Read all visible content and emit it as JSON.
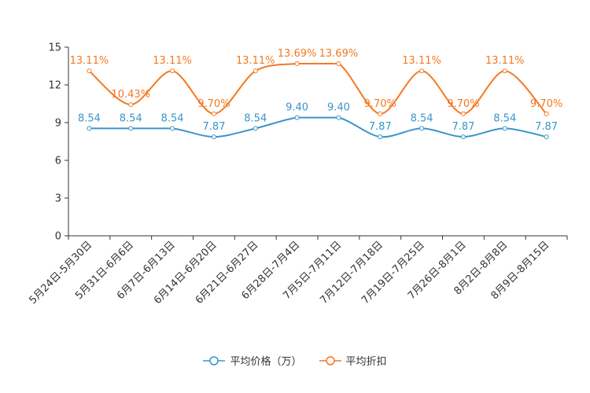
{
  "chart_data": {
    "type": "line",
    "title": "",
    "xlabel": "",
    "ylabel": "",
    "ylim": [
      0,
      15
    ],
    "yticks": [
      0,
      3,
      6,
      9,
      12,
      15
    ],
    "categories": [
      "5月24日-5月30日",
      "5月31日-6月6日",
      "6月7日-6月13日",
      "6月14日-6月20日",
      "6月21日-6月27日",
      "6月28日-7月4日",
      "7月5日-7月11日",
      "7月12日-7月18日",
      "7月19日-7月25日",
      "7月26日-8月1日",
      "8月2日-8月8日",
      "8月9日-8月15日"
    ],
    "series": [
      {
        "name": "平均价格（万）",
        "color": "#3a96c8",
        "values": [
          8.54,
          8.54,
          8.54,
          7.87,
          8.54,
          9.4,
          9.4,
          7.87,
          8.54,
          7.87,
          8.54,
          7.87
        ],
        "labels": [
          "8.54",
          "8.54",
          "8.54",
          "7.87",
          "8.54",
          "9.40",
          "9.40",
          "7.87",
          "8.54",
          "7.87",
          "8.54",
          "7.87"
        ]
      },
      {
        "name": "平均折扣",
        "color": "#f47920",
        "values": [
          13.11,
          10.43,
          13.11,
          9.7,
          13.11,
          13.69,
          13.69,
          9.7,
          13.11,
          9.7,
          13.11,
          9.7
        ],
        "labels": [
          "13.11%",
          "10.43%",
          "13.11%",
          "9.70%",
          "13.11%",
          "13.69%",
          "13.69%",
          "9.70%",
          "13.11%",
          "9.70%",
          "13.11%",
          "9.70%"
        ]
      }
    ],
    "legend_position": "bottom-center",
    "grid": false
  }
}
